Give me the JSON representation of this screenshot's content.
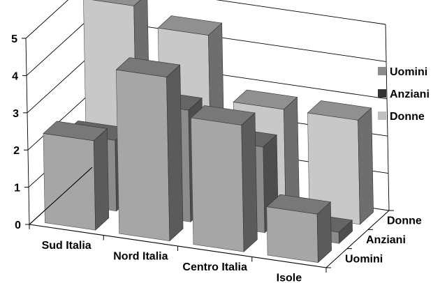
{
  "chart_data": {
    "type": "bar",
    "title": "",
    "xlabel": "",
    "ylabel": "",
    "ylim": [
      0,
      5
    ],
    "yticks": [
      "0",
      "1",
      "2",
      "3",
      "4",
      "5"
    ],
    "grid": true,
    "legend_position": "right",
    "categories": [
      "Sud Italia",
      "Nord Italia",
      "Centro Italia",
      "Isole"
    ],
    "depth_labels": [
      "Uomini",
      "Anziani",
      "Donne"
    ],
    "series": [
      {
        "name": "Uomini",
        "values": [
          2.4,
          4.4,
          3.4,
          1.3
        ],
        "color": "#a6a6a6"
      },
      {
        "name": "Anziani",
        "values": [
          1.9,
          3.0,
          2.3,
          0.3
        ],
        "color": "#8c8c8c"
      },
      {
        "name": "Donne",
        "values": [
          5.0,
          4.5,
          2.8,
          2.8
        ],
        "color": "#c8c8c8"
      }
    ],
    "legend": [
      {
        "label": "Uomini",
        "swatch": "#8c8c8c"
      },
      {
        "label": "Anziani",
        "swatch": "#333333"
      },
      {
        "label": "Donne",
        "swatch": "#bfbfbf"
      }
    ]
  }
}
